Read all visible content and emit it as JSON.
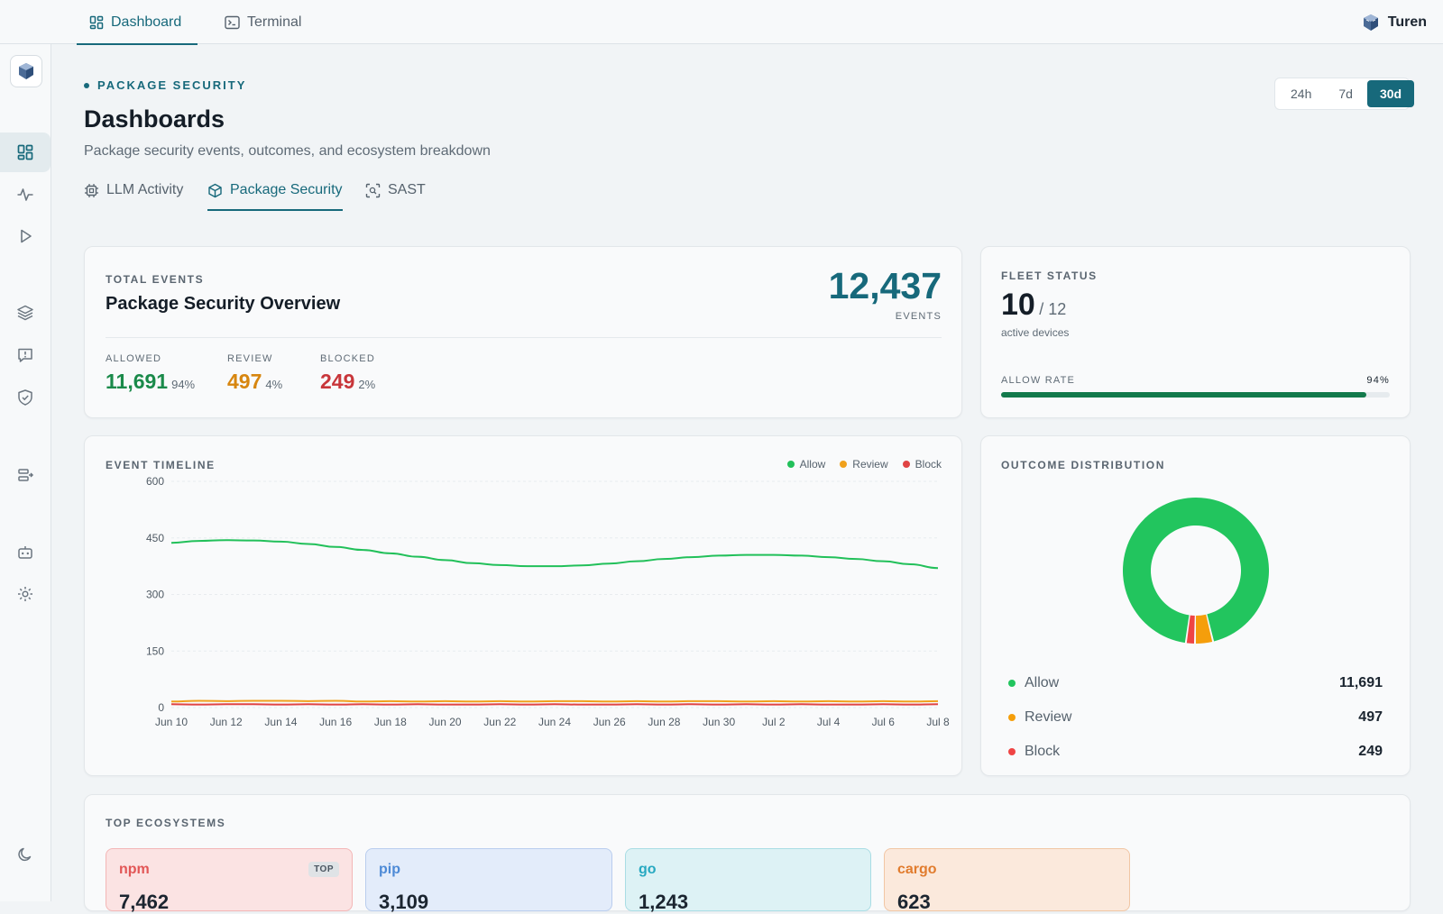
{
  "topbar": {
    "tabs": [
      {
        "label": "Dashboard",
        "icon": "dashboard-icon"
      },
      {
        "label": "Terminal",
        "icon": "terminal-icon"
      }
    ],
    "brand": "Turen"
  },
  "header": {
    "eyebrow": "PACKAGE SECURITY",
    "title": "Dashboards",
    "subtitle": "Package security events, outcomes, and ecosystem breakdown"
  },
  "range": {
    "options": [
      "24h",
      "7d",
      "30d"
    ],
    "selected": "30d"
  },
  "subtabs": [
    {
      "label": "LLM Activity",
      "icon": "chip-icon"
    },
    {
      "label": "Package Security",
      "icon": "package-icon"
    },
    {
      "label": "SAST",
      "icon": "scan-icon"
    }
  ],
  "overview": {
    "eyebrow": "TOTAL EVENTS",
    "title": "Package Security Overview",
    "total": "12,437",
    "total_unit": "EVENTS",
    "stats": [
      {
        "label": "ALLOWED",
        "value": "11,691",
        "pct": "94%",
        "color": "#1a8a4a"
      },
      {
        "label": "REVIEW",
        "value": "497",
        "pct": "4%",
        "color": "#d7860f"
      },
      {
        "label": "BLOCKED",
        "value": "249",
        "pct": "2%",
        "color": "#c8363a"
      }
    ]
  },
  "fleet": {
    "label": "FLEET STATUS",
    "active": "10",
    "total": "/ 12",
    "caption": "active devices",
    "rate_label": "ALLOW RATE",
    "rate_value": "94%",
    "rate_fraction": 0.94
  },
  "timeline": {
    "label": "EVENT TIMELINE",
    "legend": [
      {
        "name": "Allow",
        "color": "#22c05a"
      },
      {
        "name": "Review",
        "color": "#f0a11c"
      },
      {
        "name": "Block",
        "color": "#e04444"
      }
    ]
  },
  "outcome": {
    "label": "OUTCOME DISTRIBUTION",
    "items": [
      {
        "name": "Allow",
        "value": "11,691",
        "color": "#22c55e"
      },
      {
        "name": "Review",
        "value": "497",
        "color": "#f59e0b"
      },
      {
        "name": "Block",
        "value": "249",
        "color": "#ef4444"
      }
    ]
  },
  "ecosystems": {
    "label": "TOP ECOSYSTEMS",
    "items": [
      {
        "name": "npm",
        "value": "7,462",
        "badge": "TOP",
        "bg": "#fbe3e3",
        "border": "#f3b6b6",
        "color": "#e25656"
      },
      {
        "name": "pip",
        "value": "3,109",
        "bg": "#e3ecfa",
        "border": "#b9cdee",
        "color": "#4d8ad6"
      },
      {
        "name": "go",
        "value": "1,243",
        "bg": "#ddf2f5",
        "border": "#a9dde4",
        "color": "#27a9c1"
      },
      {
        "name": "cargo",
        "value": "623",
        "bg": "#fbe9dc",
        "border": "#f1c6a4",
        "color": "#e17c2e"
      }
    ]
  },
  "chart_data": [
    {
      "type": "line",
      "x": [
        "Jun 10",
        "Jun 11",
        "Jun 12",
        "Jun 13",
        "Jun 14",
        "Jun 15",
        "Jun 16",
        "Jun 17",
        "Jun 18",
        "Jun 19",
        "Jun 20",
        "Jun 21",
        "Jun 22",
        "Jun 23",
        "Jun 24",
        "Jun 25",
        "Jun 26",
        "Jun 27",
        "Jun 28",
        "Jun 29",
        "Jun 30",
        "Jul 1",
        "Jul 2",
        "Jul 3",
        "Jul 4",
        "Jul 5",
        "Jul 6",
        "Jul 7",
        "Jul 8"
      ],
      "x_ticks": [
        "Jun 10",
        "Jun 12",
        "Jun 14",
        "Jun 16",
        "Jun 18",
        "Jun 20",
        "Jun 22",
        "Jun 24",
        "Jun 26",
        "Jun 28",
        "Jun 30",
        "Jul 2",
        "Jul 4",
        "Jul 6",
        "Jul 8"
      ],
      "series": [
        {
          "name": "Allow",
          "color": "#22c05a",
          "values": [
            437,
            442,
            444,
            443,
            440,
            434,
            426,
            418,
            409,
            400,
            391,
            383,
            378,
            375,
            375,
            377,
            382,
            388,
            394,
            399,
            403,
            405,
            405,
            403,
            399,
            394,
            388,
            380,
            370
          ]
        },
        {
          "name": "Review",
          "color": "#f0a11c",
          "values": [
            16,
            18,
            17,
            18,
            18,
            17,
            18,
            16,
            17,
            16,
            17,
            16,
            17,
            16,
            17,
            17,
            16,
            17,
            16,
            17,
            17,
            16,
            17,
            16,
            17,
            16,
            17,
            16,
            17
          ]
        },
        {
          "name": "Block",
          "color": "#e04444",
          "values": [
            9,
            8,
            9,
            9,
            8,
            9,
            8,
            9,
            8,
            9,
            8,
            8,
            9,
            8,
            9,
            8,
            8,
            9,
            8,
            9,
            8,
            9,
            8,
            9,
            8,
            8,
            9,
            8,
            9
          ]
        }
      ],
      "ylim": [
        0,
        600
      ],
      "y_ticks": [
        0,
        150,
        300,
        450,
        600
      ],
      "grid": true,
      "legend": "top-right"
    },
    {
      "type": "pie",
      "donut": true,
      "categories": [
        "Allow",
        "Review",
        "Block"
      ],
      "values": [
        11691,
        497,
        249
      ]
    }
  ]
}
